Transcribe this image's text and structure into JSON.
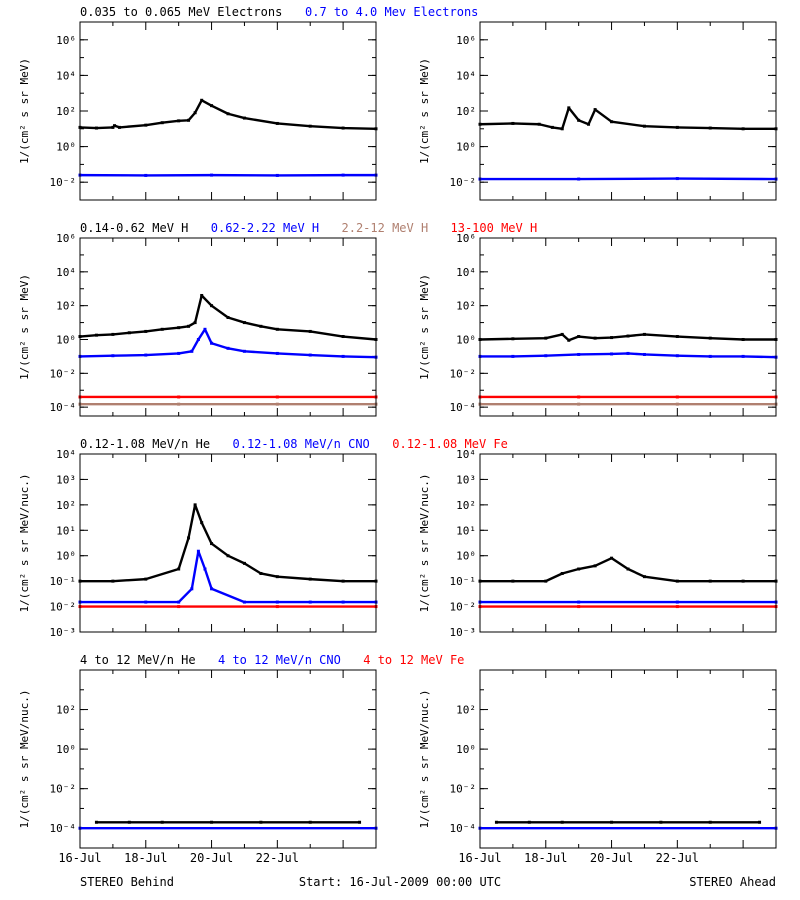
{
  "footer": {
    "left": "STEREO Behind",
    "center": "Start: 16-Jul-2009 00:00 UTC",
    "right": "STEREO Ahead"
  },
  "colors": {
    "black": "#000000",
    "blue": "#0000ff",
    "tan": "#b08070",
    "red": "#ff0000"
  },
  "chart_data": [
    {
      "type": "scatter",
      "title_entries": [
        {
          "text": "0.035 to 0.065 MeV Electrons",
          "color": "#000000"
        },
        {
          "text": "0.7 to 4.0 Mev Electrons",
          "color": "#0000ff"
        }
      ],
      "ylabel": "1/(cm² s sr MeV)",
      "y_scale": "log",
      "ylim": [
        0.001,
        10000000
      ],
      "y_tick_exponents": [
        -2,
        0,
        2,
        4,
        6
      ],
      "x_range_days": [
        0,
        9
      ],
      "x_tick_labels": [
        "16-Jul",
        "18-Jul",
        "20-Jul",
        "22-Jul"
      ],
      "panels": [
        {
          "spacecraft": "Behind",
          "series": [
            {
              "color": "#000000",
              "x": [
                0,
                0.5,
                1.0,
                1.05,
                1.2,
                2,
                2.5,
                3,
                3.3,
                3.5,
                3.7,
                4,
                4.5,
                5,
                6,
                7,
                8,
                9
              ],
              "y": [
                12,
                11,
                12,
                15,
                12,
                16,
                22,
                28,
                30,
                80,
                400,
                200,
                70,
                40,
                20,
                14,
                11,
                10
              ]
            },
            {
              "color": "#0000ff",
              "x": [
                0,
                2,
                4,
                6,
                8,
                9
              ],
              "y": [
                0.025,
                0.024,
                0.025,
                0.024,
                0.025,
                0.025
              ]
            }
          ]
        },
        {
          "spacecraft": "Ahead",
          "series": [
            {
              "color": "#000000",
              "x": [
                0,
                1,
                1.8,
                2.2,
                2.5,
                2.7,
                3.0,
                3.3,
                3.5,
                4,
                5,
                6,
                7,
                8,
                9
              ],
              "y": [
                18,
                20,
                18,
                12,
                10,
                150,
                30,
                18,
                120,
                25,
                14,
                12,
                11,
                10,
                10
              ]
            },
            {
              "color": "#0000ff",
              "x": [
                0,
                3,
                6,
                9
              ],
              "y": [
                0.015,
                0.015,
                0.016,
                0.015
              ]
            }
          ]
        }
      ]
    },
    {
      "type": "scatter",
      "title_entries": [
        {
          "text": "0.14-0.62 MeV H",
          "color": "#000000"
        },
        {
          "text": "0.62-2.22 MeV H",
          "color": "#0000ff"
        },
        {
          "text": "2.2-12 MeV H",
          "color": "#b08070"
        },
        {
          "text": "13-100 MeV H",
          "color": "#ff0000"
        }
      ],
      "ylabel": "1/(cm² s sr MeV)",
      "y_scale": "log",
      "ylim": [
        3e-05,
        1000000
      ],
      "y_tick_exponents": [
        -4,
        -2,
        0,
        2,
        4,
        6
      ],
      "x_range_days": [
        0,
        9
      ],
      "x_tick_labels": [
        "16-Jul",
        "18-Jul",
        "20-Jul",
        "22-Jul"
      ],
      "panels": [
        {
          "spacecraft": "Behind",
          "series": [
            {
              "color": "#000000",
              "x": [
                0,
                0.5,
                1,
                1.5,
                2,
                2.5,
                3,
                3.3,
                3.5,
                3.7,
                4,
                4.5,
                5,
                5.5,
                6,
                7,
                8,
                9
              ],
              "y": [
                1.5,
                1.8,
                2,
                2.5,
                3,
                4,
                5,
                6,
                10,
                400,
                100,
                20,
                10,
                6,
                4,
                3,
                1.5,
                1
              ]
            },
            {
              "color": "#0000ff",
              "x": [
                0,
                1,
                2,
                3,
                3.4,
                3.6,
                3.8,
                4,
                4.5,
                5,
                6,
                7,
                8,
                9
              ],
              "y": [
                0.1,
                0.11,
                0.12,
                0.15,
                0.2,
                1,
                4,
                0.6,
                0.3,
                0.2,
                0.15,
                0.12,
                0.1,
                0.09
              ]
            },
            {
              "color": "#b08070",
              "x": [
                0,
                3,
                6,
                9
              ],
              "y": [
                0.00015,
                0.00015,
                0.00015,
                0.00015
              ]
            },
            {
              "color": "#ff0000",
              "x": [
                0,
                3,
                6,
                9
              ],
              "y": [
                0.0004,
                0.0004,
                0.0004,
                0.0004
              ]
            }
          ]
        },
        {
          "spacecraft": "Ahead",
          "series": [
            {
              "color": "#000000",
              "x": [
                0,
                1,
                2,
                2.5,
                2.7,
                3,
                3.5,
                4,
                4.5,
                5,
                6,
                7,
                8,
                9
              ],
              "y": [
                1,
                1.1,
                1.2,
                2,
                0.9,
                1.5,
                1.2,
                1.3,
                1.6,
                2,
                1.5,
                1.2,
                1,
                1
              ]
            },
            {
              "color": "#0000ff",
              "x": [
                0,
                1,
                2,
                3,
                4,
                4.5,
                5,
                6,
                7,
                8,
                9
              ],
              "y": [
                0.1,
                0.1,
                0.11,
                0.13,
                0.14,
                0.15,
                0.13,
                0.11,
                0.1,
                0.1,
                0.09
              ]
            },
            {
              "color": "#b08070",
              "x": [
                0,
                3,
                6,
                9
              ],
              "y": [
                0.00015,
                0.00015,
                0.00015,
                0.00015
              ]
            },
            {
              "color": "#ff0000",
              "x": [
                0,
                3,
                6,
                9
              ],
              "y": [
                0.0004,
                0.0004,
                0.0004,
                0.0004
              ]
            }
          ]
        }
      ]
    },
    {
      "type": "scatter",
      "title_entries": [
        {
          "text": "0.12-1.08 MeV/n He",
          "color": "#000000"
        },
        {
          "text": "0.12-1.08 MeV/n CNO",
          "color": "#0000ff"
        },
        {
          "text": "0.12-1.08 MeV Fe",
          "color": "#ff0000"
        }
      ],
      "ylabel": "1/(cm² s sr MeV/nuc.)",
      "y_scale": "log",
      "ylim": [
        0.001,
        10000
      ],
      "y_tick_exponents": [
        -3,
        -2,
        -1,
        0,
        1,
        2,
        3,
        4
      ],
      "x_range_days": [
        0,
        9
      ],
      "x_tick_labels": [
        "16-Jul",
        "18-Jul",
        "20-Jul",
        "22-Jul"
      ],
      "panels": [
        {
          "spacecraft": "Behind",
          "series": [
            {
              "color": "#000000",
              "x": [
                0,
                1,
                2,
                3,
                3.3,
                3.5,
                3.7,
                4,
                4.5,
                5,
                5.5,
                6,
                7,
                8,
                9
              ],
              "y": [
                0.1,
                0.1,
                0.12,
                0.3,
                5,
                100,
                20,
                3,
                1,
                0.5,
                0.2,
                0.15,
                0.12,
                0.1,
                0.1
              ]
            },
            {
              "color": "#0000ff",
              "x": [
                0,
                2,
                3,
                3.4,
                3.6,
                3.8,
                4,
                5,
                6,
                7,
                8,
                9
              ],
              "y": [
                0.015,
                0.015,
                0.015,
                0.05,
                1.5,
                0.3,
                0.05,
                0.015,
                0.015,
                0.015,
                0.015,
                0.015
              ]
            },
            {
              "color": "#ff0000",
              "x": [
                0,
                3,
                6,
                9
              ],
              "y": [
                0.01,
                0.01,
                0.01,
                0.01
              ]
            }
          ]
        },
        {
          "spacecraft": "Ahead",
          "series": [
            {
              "color": "#000000",
              "x": [
                0,
                1,
                2,
                2.5,
                3,
                3.5,
                4,
                4.5,
                5,
                6,
                7,
                8,
                9
              ],
              "y": [
                0.1,
                0.1,
                0.1,
                0.2,
                0.3,
                0.4,
                0.8,
                0.3,
                0.15,
                0.1,
                0.1,
                0.1,
                0.1
              ]
            },
            {
              "color": "#0000ff",
              "x": [
                0,
                3,
                6,
                9
              ],
              "y": [
                0.015,
                0.015,
                0.015,
                0.015
              ]
            },
            {
              "color": "#ff0000",
              "x": [
                0,
                3,
                6,
                9
              ],
              "y": [
                0.01,
                0.01,
                0.01,
                0.01
              ]
            }
          ]
        }
      ]
    },
    {
      "type": "scatter",
      "title_entries": [
        {
          "text": "4 to 12 MeV/n He",
          "color": "#000000"
        },
        {
          "text": "4 to 12 MeV/n CNO",
          "color": "#0000ff"
        },
        {
          "text": "4 to 12 MeV Fe",
          "color": "#ff0000"
        }
      ],
      "ylabel": "1/(cm² s sr MeV/nuc.)",
      "y_scale": "log",
      "ylim": [
        1e-05,
        10000
      ],
      "y_tick_exponents": [
        -4,
        -2,
        0,
        2
      ],
      "x_range_days": [
        0,
        9
      ],
      "x_tick_labels": [
        "16-Jul",
        "18-Jul",
        "20-Jul",
        "22-Jul"
      ],
      "panels": [
        {
          "spacecraft": "Behind",
          "series": [
            {
              "color": "#000000",
              "x": [
                0.5,
                1.5,
                2.5,
                4,
                5.5,
                7,
                8.5
              ],
              "y": [
                0.0002,
                0.0002,
                0.0002,
                0.0002,
                0.0002,
                0.0002,
                0.0002
              ]
            },
            {
              "color": "#0000ff",
              "x": [
                0,
                9
              ],
              "y": [
                0.0001,
                0.0001
              ]
            }
          ]
        },
        {
          "spacecraft": "Ahead",
          "series": [
            {
              "color": "#000000",
              "x": [
                0.5,
                1.5,
                2.5,
                4,
                5.5,
                7,
                8.5
              ],
              "y": [
                0.0002,
                0.0002,
                0.0002,
                0.0002,
                0.0002,
                0.0002,
                0.0002
              ]
            },
            {
              "color": "#0000ff",
              "x": [
                0,
                9
              ],
              "y": [
                0.0001,
                0.0001
              ]
            }
          ]
        }
      ]
    }
  ]
}
